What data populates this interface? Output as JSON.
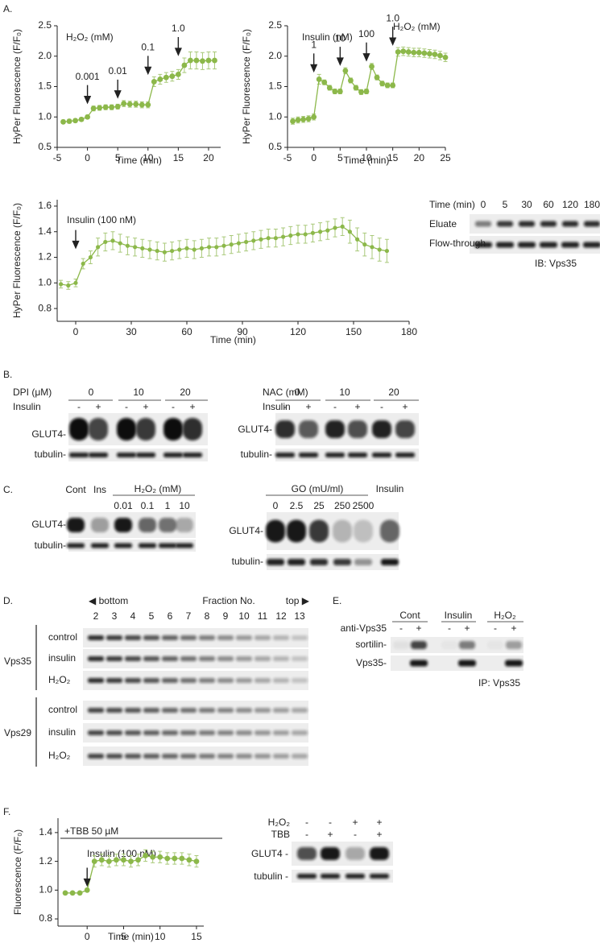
{
  "panel_labels": [
    "A.",
    "B.",
    "C.",
    "D.",
    "E.",
    "F."
  ],
  "chart_data": [
    {
      "type": "line",
      "xlabel": "Time (min)",
      "ylabel": "HyPer Fluorescence (F/F₀)",
      "color": "#8cb84a",
      "notes": [
        "H₂O₂ (mM)"
      ],
      "x": [
        -4,
        -3,
        -2,
        -1,
        0,
        1,
        2,
        3,
        4,
        5,
        6,
        7,
        8,
        9,
        10,
        11,
        12,
        13,
        14,
        15,
        16,
        17,
        18,
        19,
        20,
        21
      ],
      "values": [
        0.92,
        0.93,
        0.94,
        0.96,
        1.0,
        1.14,
        1.15,
        1.16,
        1.16,
        1.17,
        1.22,
        1.21,
        1.21,
        1.2,
        1.2,
        1.58,
        1.62,
        1.65,
        1.67,
        1.7,
        1.85,
        1.93,
        1.93,
        1.92,
        1.93,
        1.93
      ],
      "errors": [
        0.03,
        0.03,
        0.03,
        0.03,
        0.03,
        0.04,
        0.04,
        0.04,
        0.04,
        0.04,
        0.05,
        0.05,
        0.05,
        0.05,
        0.05,
        0.08,
        0.08,
        0.08,
        0.08,
        0.08,
        0.12,
        0.14,
        0.14,
        0.14,
        0.14,
        0.14
      ],
      "arrows": [
        {
          "x": 0,
          "label": "0.001"
        },
        {
          "x": 5,
          "label": "0.01"
        },
        {
          "x": 10,
          "label": "0.1"
        },
        {
          "x": 15,
          "label": "1.0"
        }
      ],
      "xlim": [
        -5,
        22
      ],
      "xticks": [
        -5,
        0,
        5,
        10,
        15,
        20
      ],
      "ylim": [
        0.5,
        2.5
      ],
      "yticks": [
        0.5,
        {
          "value": 1,
          "label": "1.0"
        },
        1.5,
        {
          "value": 2,
          "label": "2.0"
        },
        2.5
      ]
    },
    {
      "type": "line",
      "xlabel": "Time (min)",
      "ylabel": "HyPer Fluorescence (F/F₀)",
      "color": "#8cb84a",
      "notes": [
        "Insulin (nM)",
        "H₂O₂ (mM)"
      ],
      "x": [
        -4,
        -3,
        -2,
        -1,
        0,
        1,
        2,
        3,
        4,
        5,
        6,
        7,
        8,
        9,
        10,
        11,
        12,
        13,
        14,
        15,
        16,
        17,
        18,
        19,
        20,
        21,
        22,
        23,
        24,
        25
      ],
      "values": [
        0.93,
        0.95,
        0.96,
        0.97,
        1.0,
        1.62,
        1.57,
        1.48,
        1.42,
        1.42,
        1.76,
        1.6,
        1.48,
        1.41,
        1.42,
        1.83,
        1.65,
        1.55,
        1.52,
        1.52,
        2.07,
        2.08,
        2.07,
        2.06,
        2.06,
        2.05,
        2.04,
        2.03,
        2.01,
        1.98
      ],
      "errors": [
        0.05,
        0.05,
        0.05,
        0.05,
        0.05,
        0.08,
        0.04,
        0.04,
        0.04,
        0.04,
        0.05,
        0.04,
        0.04,
        0.04,
        0.04,
        0.05,
        0.04,
        0.04,
        0.04,
        0.04,
        0.07,
        0.07,
        0.07,
        0.07,
        0.07,
        0.07,
        0.07,
        0.07,
        0.07,
        0.07
      ],
      "arrows": [
        {
          "x": 0,
          "label": "1"
        },
        {
          "x": 5,
          "label": "10"
        },
        {
          "x": 10,
          "label": "100"
        },
        {
          "x": 15,
          "label": "1.0"
        }
      ],
      "xlim": [
        -5,
        25
      ],
      "xticks": [
        -5,
        0,
        5,
        10,
        15,
        20,
        25
      ],
      "ylim": [
        0.5,
        2.5
      ],
      "yticks": [
        0.5,
        {
          "value": 1,
          "label": "1.0"
        },
        1.5,
        {
          "value": 2,
          "label": "2.0"
        },
        2.5
      ]
    },
    {
      "type": "line",
      "xlabel": "Time (min)",
      "ylabel": "HyPer Fluorescence (F/F₀)",
      "color": "#8cb84a",
      "notes": [
        "Insulin (100 nM)"
      ],
      "x": [
        -8,
        -4,
        0,
        4,
        8,
        12,
        16,
        20,
        24,
        28,
        32,
        36,
        40,
        44,
        48,
        52,
        56,
        60,
        64,
        68,
        72,
        76,
        80,
        84,
        88,
        92,
        96,
        100,
        104,
        108,
        112,
        116,
        120,
        124,
        128,
        132,
        136,
        140,
        144,
        148,
        152,
        156,
        160,
        164,
        168
      ],
      "values": [
        0.99,
        0.98,
        1.0,
        1.15,
        1.2,
        1.28,
        1.32,
        1.33,
        1.31,
        1.29,
        1.28,
        1.27,
        1.26,
        1.25,
        1.24,
        1.25,
        1.26,
        1.27,
        1.26,
        1.27,
        1.28,
        1.28,
        1.29,
        1.3,
        1.31,
        1.32,
        1.33,
        1.34,
        1.35,
        1.35,
        1.36,
        1.37,
        1.38,
        1.38,
        1.39,
        1.4,
        1.41,
        1.43,
        1.44,
        1.4,
        1.34,
        1.3,
        1.28,
        1.26,
        1.25
      ],
      "errors": [
        0.03,
        0.03,
        0.03,
        0.04,
        0.05,
        0.07,
        0.07,
        0.07,
        0.07,
        0.07,
        0.07,
        0.07,
        0.07,
        0.07,
        0.07,
        0.07,
        0.07,
        0.07,
        0.07,
        0.07,
        0.07,
        0.07,
        0.07,
        0.07,
        0.07,
        0.07,
        0.07,
        0.07,
        0.07,
        0.07,
        0.07,
        0.07,
        0.07,
        0.07,
        0.07,
        0.07,
        0.07,
        0.07,
        0.07,
        0.09,
        0.09,
        0.09,
        0.09,
        0.09,
        0.09
      ],
      "arrows": [
        {
          "x": 0
        }
      ],
      "xlim": [
        -10,
        180
      ],
      "xticks": [
        0,
        30,
        60,
        90,
        120,
        150,
        180
      ],
      "ylim": [
        0.7,
        1.65
      ],
      "yticks": [
        0.8,
        {
          "value": 1,
          "label": "1.0"
        },
        1.2,
        1.4,
        1.6
      ]
    },
    {
      "type": "line",
      "xlabel": "Time (min)",
      "ylabel": "Fluorescence (F/F₀)",
      "color": "#8cb84a",
      "notes": [
        "+TBB 50 µM",
        "Insulin (100 nM)"
      ],
      "x": [
        -3,
        -2,
        -1,
        0,
        1,
        2,
        3,
        4,
        5,
        6,
        7,
        8,
        9,
        10,
        11,
        12,
        13,
        14,
        15
      ],
      "values": [
        0.98,
        0.98,
        0.98,
        1.0,
        1.2,
        1.21,
        1.2,
        1.21,
        1.21,
        1.2,
        1.21,
        1.24,
        1.23,
        1.23,
        1.22,
        1.22,
        1.22,
        1.21,
        1.2
      ],
      "errors": [
        0.01,
        0.01,
        0.01,
        0.01,
        0.04,
        0.04,
        0.04,
        0.04,
        0.04,
        0.04,
        0.04,
        0.04,
        0.04,
        0.04,
        0.04,
        0.04,
        0.04,
        0.04,
        0.04
      ],
      "arrows": [
        {
          "x": 0
        }
      ],
      "xlim": [
        -4,
        16
      ],
      "xticks": [
        0,
        5,
        10,
        15
      ],
      "ylim": [
        0.75,
        1.5
      ],
      "yticks": [
        0.8,
        {
          "value": 1,
          "label": "1.0"
        },
        1.2,
        1.4
      ]
    }
  ],
  "blot_a": {
    "header": "Time (min)",
    "lanes": [
      "0",
      "5",
      "30",
      "60",
      "120",
      "180"
    ],
    "rows": [
      "Eluate",
      "Flow-through"
    ],
    "footer": "IB: Vps35"
  },
  "blot_b": [
    {
      "treatment": "DPI (μM)",
      "insulin_label": "Insulin",
      "groups": [
        "0",
        "10",
        "20"
      ],
      "insulin": [
        "-",
        "+",
        "-",
        "+",
        "-",
        "+"
      ],
      "rows": [
        "GLUT4-",
        "tubulin-"
      ]
    },
    {
      "treatment": "NAC (mM)",
      "insulin_label": "Insulin",
      "groups": [
        "0",
        "10",
        "20"
      ],
      "insulin": [
        "-",
        "+",
        "-",
        "+",
        "-",
        "+"
      ],
      "rows": [
        "GLUT4-",
        "tubulin-"
      ]
    }
  ],
  "blot_c": [
    {
      "headers": [
        "Cont",
        "Ins",
        "H₂O₂ (mM)"
      ],
      "doses": [
        "0.01",
        "0.1",
        "1",
        "10"
      ],
      "rows": [
        "GLUT4-",
        "tubulin-"
      ]
    },
    {
      "headers": [
        "GO (mU/ml)",
        "Insulin"
      ],
      "doses": [
        "0",
        "2.5",
        "25",
        "250",
        "2500"
      ],
      "rows": [
        "GLUT4-",
        "tubulin-"
      ]
    }
  ],
  "blot_d": {
    "left": "◀ bottom",
    "title": "Fraction No.",
    "right": "top ▶",
    "fractions": [
      "2",
      "3",
      "4",
      "5",
      "6",
      "7",
      "8",
      "9",
      "10",
      "11",
      "12",
      "13"
    ],
    "groups": [
      {
        "name": "Vps35",
        "rows": [
          "control",
          "insulin",
          "H₂O₂"
        ]
      },
      {
        "name": "Vps29",
        "rows": [
          "control",
          "insulin",
          "H₂O₂"
        ]
      }
    ]
  },
  "blot_e": {
    "groups": [
      "Cont",
      "Insulin",
      "H₂O₂"
    ],
    "antibody": "anti-Vps35",
    "signs": [
      "-",
      "+",
      "-",
      "+",
      "-",
      "+"
    ],
    "rows": [
      "sortilin-",
      "Vps35-"
    ],
    "footer": "IP: Vps35"
  },
  "blot_f": {
    "conditions": [
      {
        "name": "H₂O₂",
        "signs": [
          "-",
          "-",
          "+",
          "+"
        ]
      },
      {
        "name": "TBB",
        "signs": [
          "-",
          "+",
          "-",
          "+"
        ]
      }
    ],
    "rows": [
      "GLUT4 -",
      "tubulin -"
    ]
  }
}
